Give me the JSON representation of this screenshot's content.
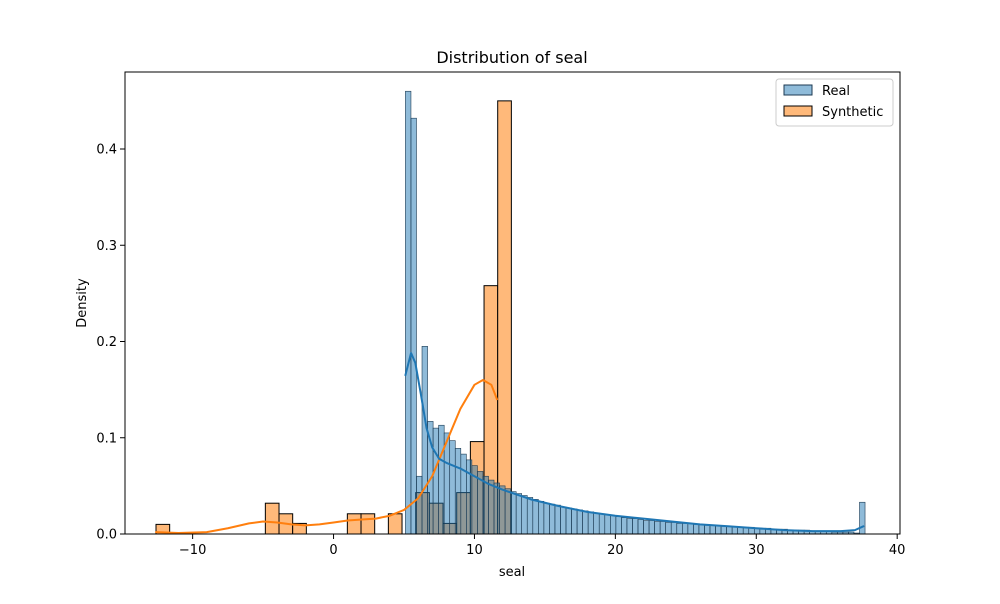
{
  "chart_data": {
    "type": "bar",
    "title": "Distribution of seal",
    "xlabel": "seal",
    "ylabel": "Density",
    "xlim": [
      -14.8,
      40.2
    ],
    "ylim": [
      0,
      0.48
    ],
    "xticks": [
      -10,
      0,
      10,
      20,
      30,
      40
    ],
    "yticks": [
      0.0,
      0.1,
      0.2,
      0.3,
      0.4
    ],
    "xtick_labels": [
      "−10",
      "0",
      "10",
      "20",
      "30",
      "40"
    ],
    "ytick_labels": [
      "0.0",
      "0.1",
      "0.2",
      "0.3",
      "0.4"
    ],
    "grid": false,
    "legend": {
      "position": "top-right",
      "entries": [
        "Real",
        "Synthetic"
      ]
    },
    "series": [
      {
        "name": "Real",
        "color": "#1f77b4",
        "fill": "#8db7d9",
        "bin_start": 5.1,
        "bin_width": 0.393,
        "values": [
          0.46,
          0.432,
          0.06,
          0.195,
          0.117,
          0.11,
          0.113,
          0.105,
          0.097,
          0.089,
          0.083,
          0.077,
          0.071,
          0.065,
          0.06,
          0.056,
          0.053,
          0.05,
          0.047,
          0.044,
          0.042,
          0.04,
          0.038,
          0.036,
          0.034,
          0.032,
          0.031,
          0.03,
          0.028,
          0.027,
          0.026,
          0.025,
          0.024,
          0.023,
          0.022,
          0.021,
          0.02,
          0.019,
          0.018,
          0.017,
          0.016,
          0.016,
          0.015,
          0.014,
          0.014,
          0.013,
          0.013,
          0.012,
          0.012,
          0.011,
          0.011,
          0.011,
          0.01,
          0.01,
          0.009,
          0.009,
          0.009,
          0.008,
          0.008,
          0.008,
          0.007,
          0.007,
          0.007,
          0.006,
          0.006,
          0.006,
          0.005,
          0.005,
          0.005,
          0.004,
          0.004,
          0.004,
          0.004,
          0.003,
          0.003,
          0.003,
          0.003,
          0.002,
          0.002,
          0.002,
          0.002,
          0.001,
          0.033
        ],
        "kde": {
          "x": [
            5.1,
            5.5,
            5.8,
            6.2,
            6.6,
            7.0,
            7.5,
            8.0,
            9.0,
            10.0,
            11.0,
            12.0,
            14.0,
            16.0,
            18.0,
            20.0,
            22.0,
            24.0,
            26.0,
            28.0,
            30.0,
            32.0,
            34.0,
            36.0,
            37.0,
            37.6
          ],
          "y": [
            0.165,
            0.188,
            0.178,
            0.145,
            0.11,
            0.09,
            0.078,
            0.074,
            0.068,
            0.06,
            0.052,
            0.046,
            0.036,
            0.029,
            0.023,
            0.019,
            0.016,
            0.013,
            0.01,
            0.008,
            0.006,
            0.004,
            0.003,
            0.003,
            0.004,
            0.008
          ]
        }
      },
      {
        "name": "Synthetic",
        "color": "#ff7f0e",
        "fill": "#ffb97a",
        "bin_start": -12.6,
        "bin_width": 0.97,
        "values": [
          0.01,
          0,
          0,
          0,
          0,
          0,
          0,
          0,
          0.032,
          0.021,
          0.011,
          0,
          0,
          0,
          0.021,
          0.021,
          0,
          0.021,
          0,
          0.043,
          0.032,
          0.011,
          0.043,
          0.096,
          0.258,
          0.45
        ],
        "kde": {
          "x": [
            -12.6,
            -11.0,
            -9.0,
            -7.5,
            -6.0,
            -5.0,
            -4.0,
            -3.0,
            -2.0,
            -1.0,
            0.0,
            1.0,
            2.0,
            3.0,
            4.0,
            5.0,
            6.0,
            7.0,
            8.0,
            9.0,
            10.0,
            10.6,
            11.2,
            11.6
          ],
          "y": [
            0.002,
            0.001,
            0.002,
            0.006,
            0.011,
            0.013,
            0.012,
            0.01,
            0.009,
            0.01,
            0.012,
            0.014,
            0.015,
            0.016,
            0.019,
            0.025,
            0.037,
            0.06,
            0.095,
            0.13,
            0.155,
            0.16,
            0.155,
            0.14
          ]
        }
      }
    ]
  }
}
